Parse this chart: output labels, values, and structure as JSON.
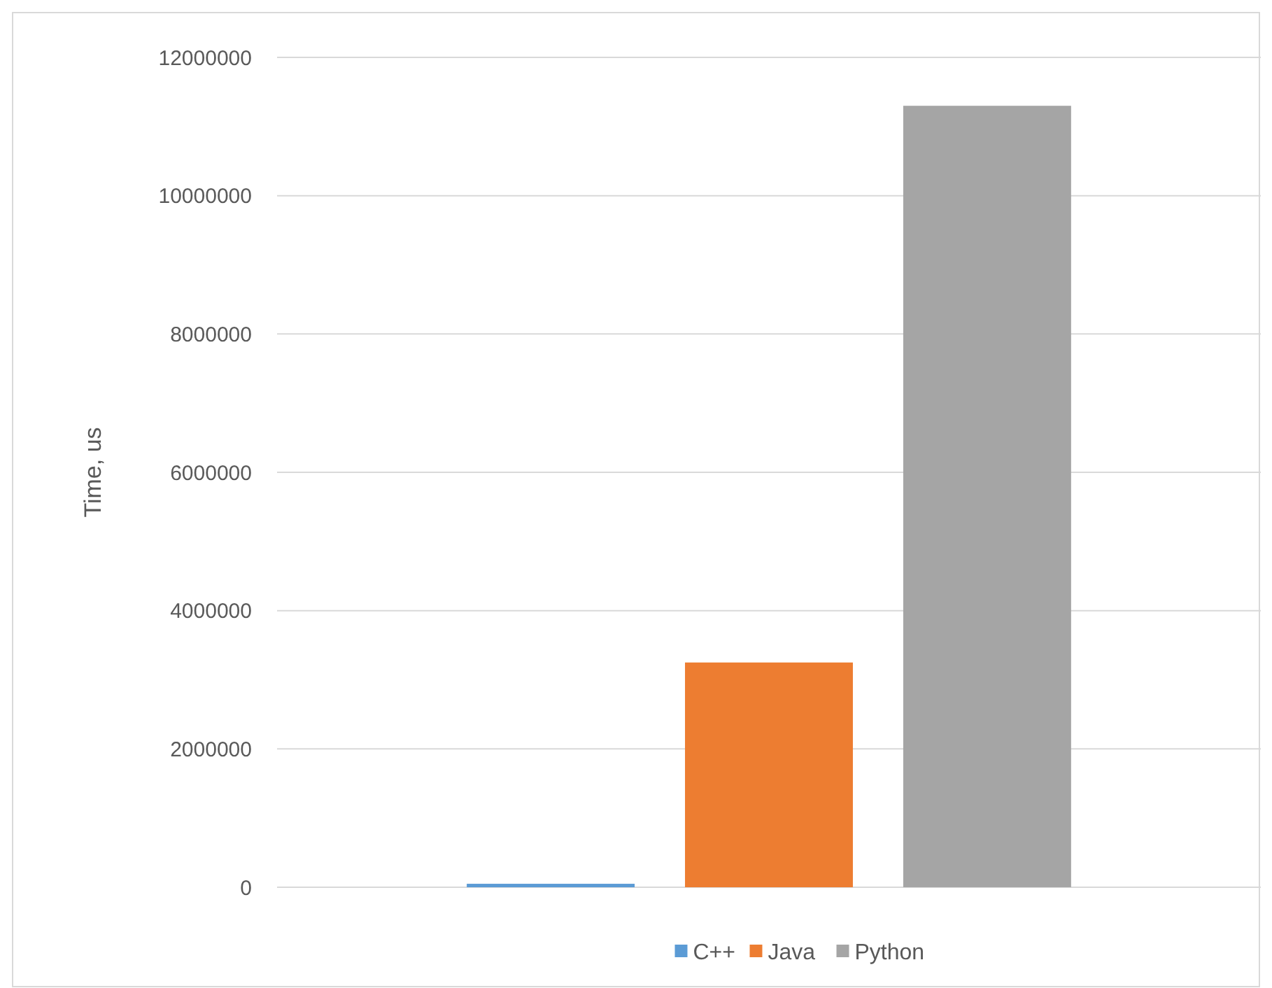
{
  "chart_data": {
    "type": "bar",
    "categories": [
      null
    ],
    "ylabel": "Time, us",
    "ylim": [
      0,
      12000000
    ],
    "yticks": [
      0,
      2000000,
      4000000,
      6000000,
      8000000,
      10000000,
      12000000
    ],
    "grid": "y",
    "legend": "bottom",
    "series": [
      {
        "name": "C++",
        "color": "#5b9bd5",
        "values": [
          50000
        ]
      },
      {
        "name": "Java",
        "color": "#ed7d31",
        "values": [
          3250000
        ]
      },
      {
        "name": "Python",
        "color": "#a5a5a5",
        "values": [
          11300000
        ]
      }
    ]
  }
}
